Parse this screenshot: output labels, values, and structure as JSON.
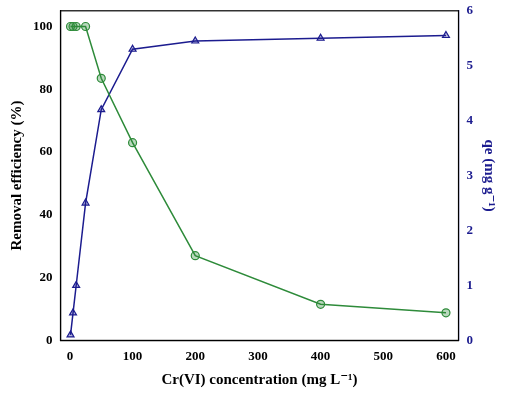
{
  "chart_data": {
    "type": "line",
    "x_label": "Cr(VI) concentration (mg L⁻¹)",
    "y_label": "Removal efficiency (%)",
    "y2_label": "qe (mg g⁻¹)",
    "x": [
      1,
      5,
      10,
      25,
      50,
      100,
      200,
      400,
      600
    ],
    "series": [
      {
        "name": "Removal efficiency",
        "color": "#2e8b3a",
        "marker": "circle",
        "line_style": "solid",
        "values": [
          100,
          100,
          100,
          100,
          83.5,
          63,
          27,
          11.5,
          8.8
        ]
      },
      {
        "name": "qe",
        "color": "#1c1c8f",
        "marker": "triangle",
        "line_style": "solid",
        "axis": "y2",
        "values": [
          0.1,
          0.5,
          1.0,
          2.5,
          4.2,
          5.3,
          5.45,
          5.5,
          5.55
        ]
      }
    ],
    "xlim": [
      -15,
      620
    ],
    "xticks": [
      0,
      100,
      200,
      300,
      400,
      500,
      600
    ],
    "ylim": [
      0,
      105
    ],
    "yticks": [
      0,
      20,
      40,
      60,
      80,
      100
    ],
    "y2lim": [
      0,
      6
    ],
    "y2ticks": [
      0,
      1,
      2,
      3,
      4,
      5,
      6
    ],
    "grid": false
  }
}
